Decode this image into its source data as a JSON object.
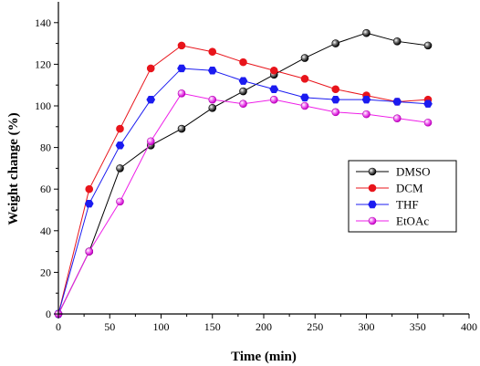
{
  "chart_data": {
    "type": "line",
    "xlabel": "Time (min)",
    "ylabel": "Weight change (%)",
    "xlim": [
      0,
      400
    ],
    "ylim": [
      0,
      150
    ],
    "xticks": [
      0,
      50,
      100,
      150,
      200,
      250,
      300,
      350,
      400
    ],
    "yticks": [
      0,
      20,
      40,
      60,
      80,
      100,
      120,
      140
    ],
    "grid": false,
    "legend_position": "right",
    "series": [
      {
        "name": "DMSO",
        "color": "#000000",
        "marker": "sphere",
        "x": [
          0,
          30,
          60,
          90,
          120,
          150,
          180,
          210,
          240,
          270,
          300,
          330,
          360
        ],
        "y": [
          0,
          30,
          70,
          81,
          89,
          99,
          107,
          115,
          123,
          130,
          135,
          131,
          129
        ]
      },
      {
        "name": "DCM",
        "color": "#e8141b",
        "marker": "circle",
        "x": [
          0,
          30,
          60,
          90,
          120,
          150,
          180,
          210,
          240,
          270,
          300,
          330,
          360
        ],
        "y": [
          0,
          60,
          89,
          118,
          129,
          126,
          121,
          117,
          113,
          108,
          105,
          102,
          103
        ]
      },
      {
        "name": "THF",
        "color": "#1b1bf0",
        "marker": "hexagon",
        "x": [
          0,
          30,
          60,
          90,
          120,
          150,
          180,
          210,
          240,
          270,
          300,
          330,
          360
        ],
        "y": [
          0,
          53,
          81,
          103,
          118,
          117,
          112,
          108,
          104,
          103,
          103,
          102,
          101
        ]
      },
      {
        "name": "EtOAc",
        "color": "#ee1ee8",
        "marker": "sphere",
        "x": [
          0,
          30,
          60,
          90,
          120,
          150,
          180,
          210,
          240,
          270,
          300,
          330,
          360
        ],
        "y": [
          0,
          30,
          54,
          83,
          106,
          103,
          101,
          103,
          100,
          97,
          96,
          94,
          92
        ]
      }
    ]
  }
}
